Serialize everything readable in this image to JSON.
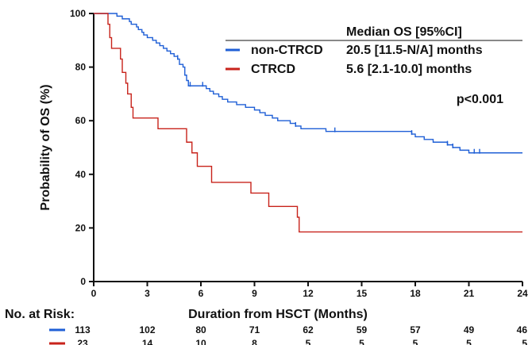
{
  "chart_data": {
    "type": "line",
    "xlabel": "Duration from HSCT (Months)",
    "ylabel": "Probability of OS (%)",
    "xlim": [
      0,
      24
    ],
    "ylim": [
      0,
      100
    ],
    "xticks": [
      "0",
      "3",
      "6",
      "9",
      "12",
      "15",
      "18",
      "21",
      "24"
    ],
    "yticks": [
      "0",
      "20",
      "40",
      "60",
      "80",
      "100"
    ],
    "grid": false,
    "legend": {
      "placement": "top-right",
      "header": "Median OS [95%CI]"
    },
    "annotation": "p<0.001",
    "series": [
      {
        "name": "non-CTRCD",
        "median_label": "20.5 [11.5-N/A] months",
        "color": "#1f5fd6",
        "points": [
          [
            0,
            100
          ],
          [
            1.2,
            100
          ],
          [
            1.3,
            99
          ],
          [
            1.5,
            99
          ],
          [
            1.6,
            98
          ],
          [
            1.8,
            98
          ],
          [
            2.0,
            97
          ],
          [
            2.1,
            96
          ],
          [
            2.3,
            96
          ],
          [
            2.4,
            95
          ],
          [
            2.5,
            94
          ],
          [
            2.7,
            93
          ],
          [
            2.8,
            92
          ],
          [
            3.0,
            91
          ],
          [
            3.3,
            90
          ],
          [
            3.5,
            89
          ],
          [
            3.7,
            88
          ],
          [
            3.9,
            87
          ],
          [
            4.1,
            86
          ],
          [
            4.3,
            85
          ],
          [
            4.5,
            84
          ],
          [
            4.7,
            83
          ],
          [
            4.8,
            81
          ],
          [
            5.0,
            80
          ],
          [
            5.1,
            77
          ],
          [
            5.2,
            75
          ],
          [
            5.3,
            73
          ],
          [
            6.0,
            73
          ],
          [
            6.3,
            72
          ],
          [
            6.5,
            71
          ],
          [
            6.7,
            70
          ],
          [
            7.0,
            69
          ],
          [
            7.2,
            68
          ],
          [
            7.5,
            67
          ],
          [
            8.0,
            66
          ],
          [
            8.5,
            65
          ],
          [
            9.0,
            64
          ],
          [
            9.3,
            63
          ],
          [
            9.6,
            62
          ],
          [
            10.0,
            61
          ],
          [
            10.3,
            60
          ],
          [
            11.0,
            59
          ],
          [
            11.3,
            58
          ],
          [
            11.6,
            57
          ],
          [
            13.0,
            56
          ],
          [
            17.5,
            56
          ],
          [
            17.8,
            55
          ],
          [
            18.0,
            54
          ],
          [
            18.5,
            53
          ],
          [
            19.0,
            52
          ],
          [
            19.8,
            51
          ],
          [
            20.1,
            50
          ],
          [
            20.5,
            49
          ],
          [
            21.0,
            48
          ],
          [
            24,
            48
          ]
        ],
        "censor_marks": [
          [
            4.7,
            83
          ],
          [
            5.4,
            73
          ],
          [
            6.1,
            73
          ],
          [
            11.3,
            58
          ],
          [
            13.5,
            56
          ],
          [
            17.8,
            55
          ],
          [
            19.8,
            51
          ],
          [
            20.1,
            50
          ],
          [
            21.3,
            48
          ],
          [
            21.6,
            48
          ]
        ]
      },
      {
        "name": "CTRCD",
        "median_label": "5.6 [2.1-10.0] months",
        "color": "#c8231b",
        "points": [
          [
            0,
            100
          ],
          [
            0.7,
            100
          ],
          [
            0.8,
            96
          ],
          [
            0.9,
            91
          ],
          [
            1.0,
            87
          ],
          [
            1.4,
            87
          ],
          [
            1.5,
            83
          ],
          [
            1.6,
            78
          ],
          [
            1.8,
            74
          ],
          [
            1.9,
            70
          ],
          [
            2.1,
            65
          ],
          [
            2.2,
            61
          ],
          [
            3.5,
            61
          ],
          [
            3.6,
            57
          ],
          [
            5.1,
            57
          ],
          [
            5.2,
            52
          ],
          [
            5.5,
            48
          ],
          [
            5.8,
            43
          ],
          [
            6.5,
            43
          ],
          [
            6.6,
            37
          ],
          [
            8.7,
            37
          ],
          [
            8.8,
            33
          ],
          [
            9.7,
            33
          ],
          [
            9.8,
            28
          ],
          [
            11.3,
            28
          ],
          [
            11.4,
            24
          ],
          [
            11.5,
            18.5
          ],
          [
            24,
            18.5
          ]
        ],
        "censor_marks": []
      }
    ],
    "risk_table": {
      "title": "No. at Risk:",
      "times": [
        0,
        3,
        6,
        9,
        12,
        15,
        18,
        21,
        24
      ],
      "rows": [
        {
          "series": "non-CTRCD",
          "values": [
            "113",
            "102",
            "80",
            "71",
            "62",
            "59",
            "57",
            "49",
            "46"
          ]
        },
        {
          "series": "CTRCD",
          "values": [
            "23",
            "14",
            "10",
            "8",
            "5",
            "5",
            "5",
            "5",
            "5"
          ]
        }
      ]
    }
  }
}
